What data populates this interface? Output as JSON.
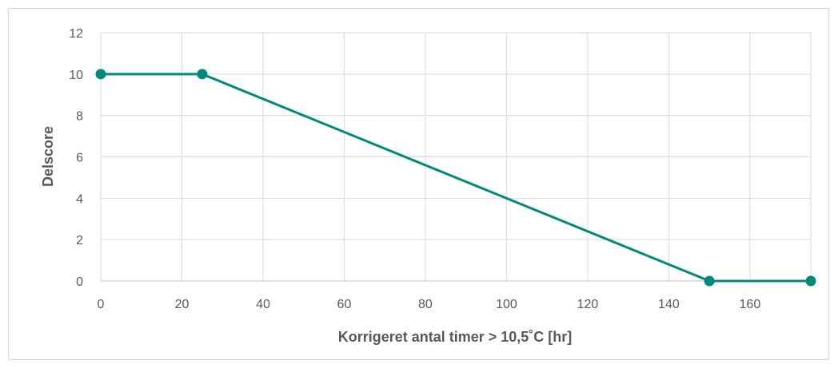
{
  "chart_data": {
    "type": "line",
    "title": "",
    "xlabel": "Korrigeret antal timer > 10,5˚C [hr]",
    "ylabel": "Delscore",
    "xlim": [
      0,
      175
    ],
    "ylim": [
      0,
      12
    ],
    "x_ticks": [
      0,
      20,
      40,
      60,
      80,
      100,
      120,
      140,
      160
    ],
    "y_ticks": [
      0,
      2,
      4,
      6,
      8,
      10,
      12
    ],
    "x_tick_labels": [
      "0",
      "20",
      "40",
      "60",
      "80",
      "100",
      "120",
      "140",
      "160"
    ],
    "y_tick_labels": [
      "0",
      "2",
      "4",
      "6",
      "8",
      "10",
      "12"
    ],
    "grid": true,
    "legend": "none",
    "series": [
      {
        "color": "#00897b",
        "marker": "circle",
        "x": [
          0,
          25,
          150,
          175
        ],
        "y": [
          10,
          10,
          0,
          0
        ]
      }
    ]
  },
  "colors": {
    "series": "#00897b",
    "grid": "#d9d9d9",
    "text": "#595959"
  }
}
